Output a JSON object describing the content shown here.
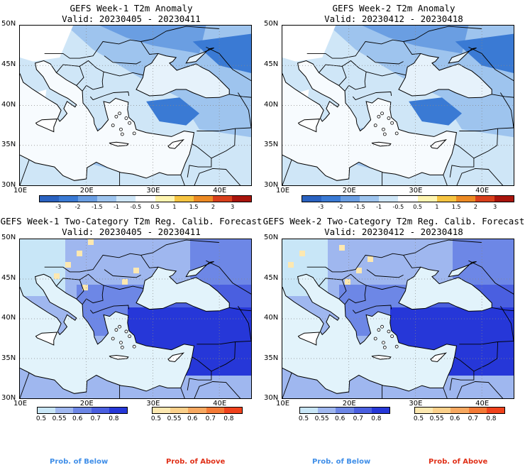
{
  "panels": [
    {
      "title": "GEFS Week-1 T2m Anomaly",
      "valid": "Valid: 20230405 - 20230411"
    },
    {
      "title": "GEFS Week-2 T2m Anomaly",
      "valid": "Valid: 20230412 - 20230418"
    },
    {
      "title": "GEFS Week-1 Two-Category T2m Reg. Calib. Forecast",
      "valid": "Valid: 20230405 - 20230411"
    },
    {
      "title": "GEFS Week-2 Two-Category T2m Reg. Calib. Forecast",
      "valid": "Valid: 20230412 - 20230418"
    }
  ],
  "axes": {
    "lat_labels": [
      "50N",
      "45N",
      "40N",
      "35N",
      "30N"
    ],
    "lon_labels": [
      "10E",
      "20E",
      "30E",
      "40E"
    ]
  },
  "anomaly_colorbar": {
    "labels": [
      "-3",
      "-2",
      "-1.5",
      "-1",
      "-0.5",
      "0.5",
      "1",
      "1.5",
      "2",
      "3"
    ],
    "colors": [
      "#2a62c0",
      "#3a7ad4",
      "#6a9ee2",
      "#9ec4ee",
      "#cfe6f7",
      "#ffffff",
      "#fff5b0",
      "#f6c441",
      "#ec8a24",
      "#d8401c",
      "#a8140c"
    ]
  },
  "prob_below": {
    "labels": [
      "0.5",
      "0.55",
      "0.6",
      "0.7",
      "0.8"
    ],
    "colors": [
      "#c8e6f7",
      "#9fb7ef",
      "#6d87e6",
      "#4a5fe0",
      "#2637d8"
    ],
    "footer": "Prob. of Below"
  },
  "prob_above": {
    "labels": [
      "0.5",
      "0.55",
      "0.6",
      "0.7",
      "0.8"
    ],
    "colors": [
      "#fde8b0",
      "#fbd08a",
      "#f7a860",
      "#f47a36",
      "#f0421c"
    ],
    "footer": "Prob. of Above"
  },
  "colors": {
    "footer_below": "#3f8ee8",
    "footer_above": "#e03018"
  }
}
